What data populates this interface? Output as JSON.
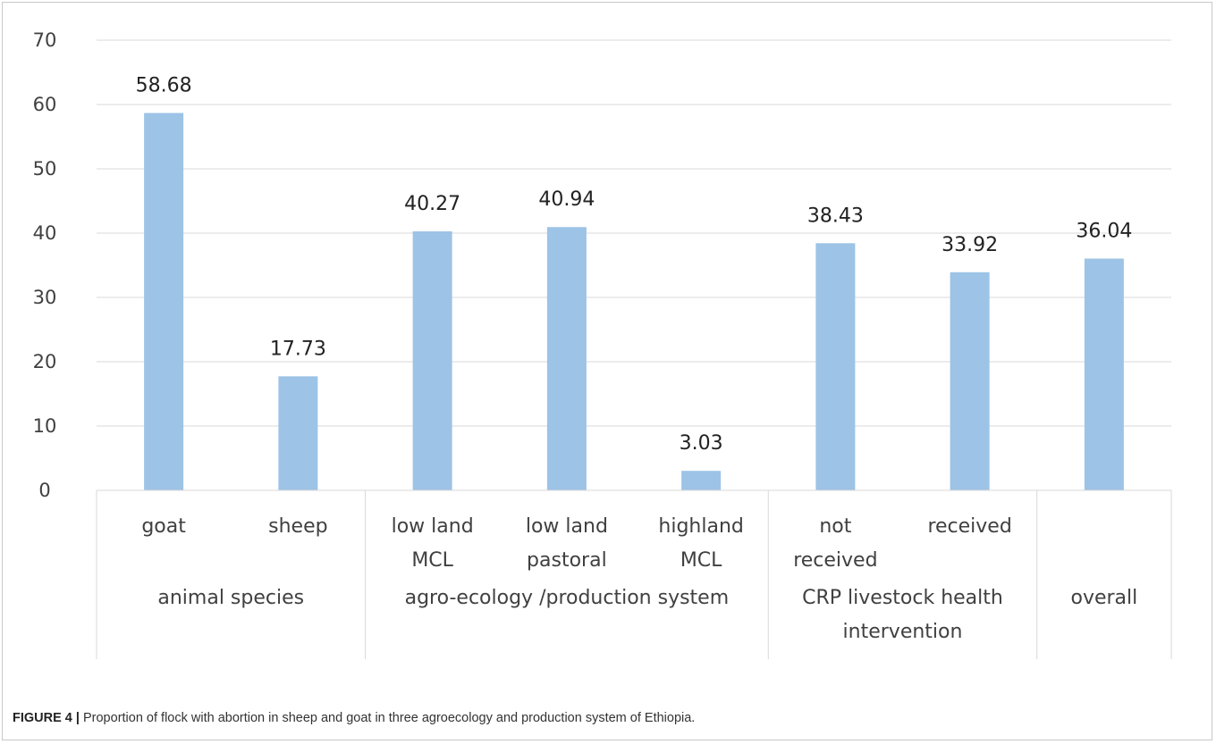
{
  "chart_data": {
    "type": "bar",
    "categories": [
      "goat",
      "sheep",
      "low land\nMCL",
      "low land\npastoral",
      "highland\nMCL",
      "not\nreceived",
      "received",
      ""
    ],
    "values": [
      58.68,
      17.73,
      40.27,
      40.94,
      3.03,
      38.43,
      33.92,
      36.04
    ],
    "data_labels": [
      "58.68",
      "17.73",
      "40.27",
      "40.94",
      "3.03",
      "38.43",
      "33.92",
      "36.04"
    ],
    "groups": [
      {
        "label": "animal species",
        "categories": [
          "goat",
          "sheep"
        ]
      },
      {
        "label": "agro-ecology /production system",
        "categories": [
          "low land MCL",
          "low land pastoral",
          "highland MCL"
        ]
      },
      {
        "label": "CRP livestock health\nintervention",
        "categories": [
          "not received",
          "received"
        ]
      },
      {
        "label": "overall",
        "categories": [
          ""
        ]
      }
    ],
    "ylim": [
      0,
      70
    ],
    "yticks": [
      "0",
      "10",
      "20",
      "30",
      "40",
      "50",
      "60",
      "70"
    ],
    "grid": true,
    "bar_color": "#9dc3e6"
  },
  "caption": {
    "lead": "FIGURE 4 |",
    "text": " Proportion of flock with abortion in sheep and goat in three agroecology and production system of Ethiopia."
  }
}
